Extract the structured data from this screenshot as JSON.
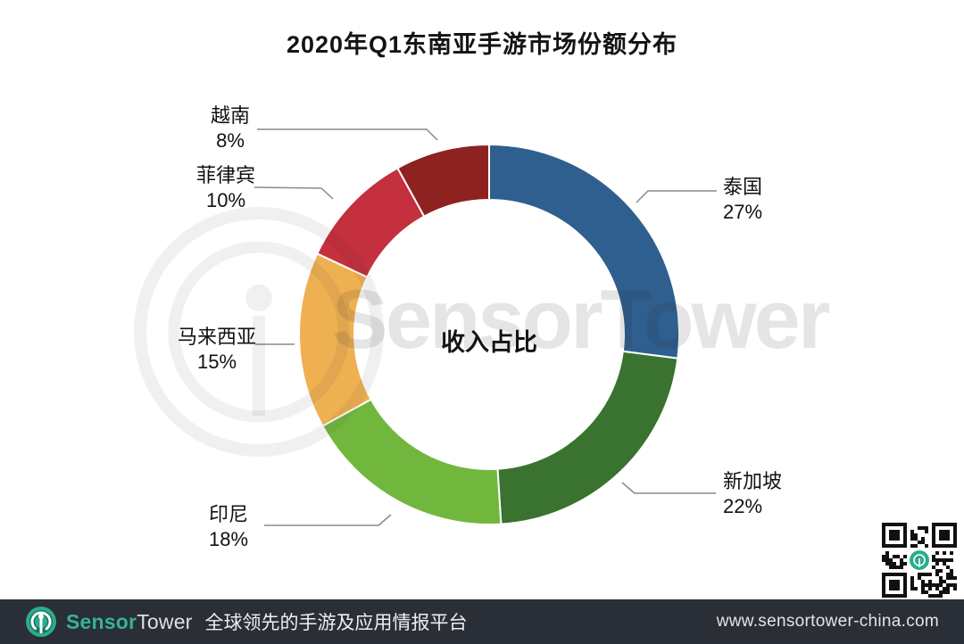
{
  "title": "2020年Q1东南亚手游市场份额分布",
  "chart_data": {
    "type": "pie",
    "subtype": "donut",
    "title": "2020年Q1东南亚手游市场份额分布",
    "center_label": "收入占比",
    "unit": "%",
    "direction": "clockwise",
    "start_angle_deg": 0,
    "categories": [
      "泰国",
      "新加坡",
      "印尼",
      "马来西亚",
      "菲律宾",
      "越南"
    ],
    "values": [
      27,
      22,
      18,
      15,
      10,
      8
    ],
    "colors": [
      "#2F5F8F",
      "#3A7230",
      "#72B73D",
      "#EFB052",
      "#C4303D",
      "#8E2220"
    ],
    "legend_position": "callout-labels"
  },
  "watermark": {
    "text": "SensorTower"
  },
  "footer": {
    "brand_sensor": "Sensor",
    "brand_tower": "Tower",
    "tagline": "全球领先的手游及应用情报平台",
    "url": "www.sensortower-china.com",
    "bg_color": "#2A2E37",
    "accent_color": "#2BAC8E"
  }
}
